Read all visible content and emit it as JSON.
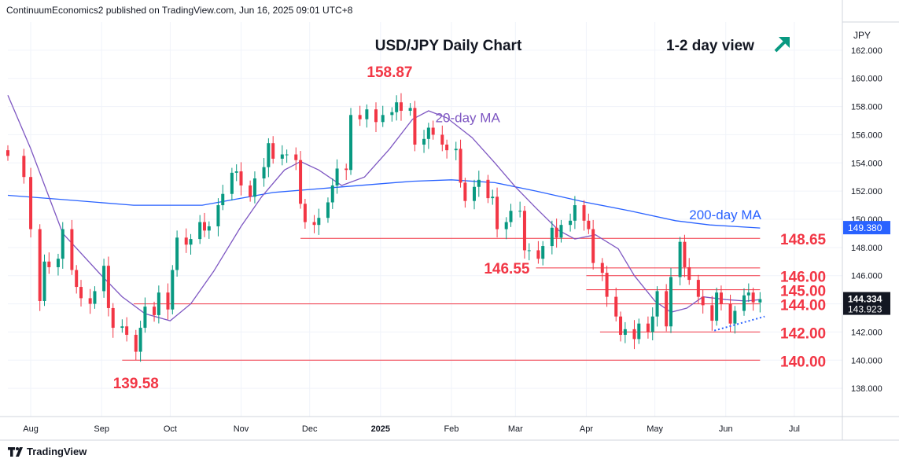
{
  "header": {
    "published_by": "ContinuumEconomics2 published on TradingView.com, Jun 16, 2025 09:01 UTC+8"
  },
  "footer": {
    "brand": "TradingView",
    "brand_icon": "tradingview-logo-icon"
  },
  "colors": {
    "up": "#089981",
    "down": "#f23645",
    "ma20": "#7e57c2",
    "ma200": "#2962ff",
    "level_line": "#f23645",
    "annotation": "#f23645",
    "arrow": "#089981",
    "price_tag": "#131722",
    "ma200_tag": "#2962ff"
  },
  "chart_data": {
    "type": "candlestick",
    "title": "USD/JPY Daily Chart",
    "view": "1-2 day view",
    "view_icon": "arrow-up-right-icon",
    "currency": "JPY",
    "ylim": [
      136,
      164
    ],
    "y_ticks": [
      "162.000",
      "160.000",
      "158.000",
      "156.000",
      "154.000",
      "152.000",
      "150.000",
      "148.000",
      "146.000",
      "144.000",
      "142.000",
      "140.000",
      "138.000"
    ],
    "x_labels": [
      {
        "label": "Aug",
        "date": "2024-08-01"
      },
      {
        "label": "Sep",
        "date": "2024-09-01"
      },
      {
        "label": "Oct",
        "date": "2024-10-01"
      },
      {
        "label": "Nov",
        "date": "2024-11-01"
      },
      {
        "label": "Dec",
        "date": "2024-12-01"
      },
      {
        "label": "2025",
        "date": "2025-01-01"
      },
      {
        "label": "Feb",
        "date": "2025-02-01"
      },
      {
        "label": "Mar",
        "date": "2025-03-01"
      },
      {
        "label": "Apr",
        "date": "2025-04-01"
      },
      {
        "label": "May",
        "date": "2025-05-01"
      },
      {
        "label": "Jun",
        "date": "2025-06-01"
      },
      {
        "label": "Jul",
        "date": "2025-07-01"
      }
    ],
    "x_range": [
      "2024-07-22",
      "2025-07-22"
    ],
    "closes": [
      [
        "2024-07-22",
        154.5
      ],
      [
        "2024-07-29",
        153.0
      ],
      [
        "2024-08-01",
        149.3
      ],
      [
        "2024-08-05",
        144.2
      ],
      [
        "2024-08-07",
        147.0
      ],
      [
        "2024-08-09",
        146.6
      ],
      [
        "2024-08-13",
        147.2
      ],
      [
        "2024-08-15",
        149.3
      ],
      [
        "2024-08-19",
        146.4
      ],
      [
        "2024-08-21",
        145.2
      ],
      [
        "2024-08-23",
        144.4
      ],
      [
        "2024-08-27",
        144.0
      ],
      [
        "2024-08-29",
        144.9
      ],
      [
        "2024-09-02",
        146.7
      ],
      [
        "2024-09-04",
        143.7
      ],
      [
        "2024-09-06",
        142.3
      ],
      [
        "2024-09-10",
        142.4
      ],
      [
        "2024-09-12",
        141.8
      ],
      [
        "2024-09-16",
        140.6
      ],
      [
        "2024-09-18",
        142.3
      ],
      [
        "2024-09-20",
        143.8
      ],
      [
        "2024-09-24",
        143.2
      ],
      [
        "2024-09-26",
        144.8
      ],
      [
        "2024-09-30",
        143.6
      ],
      [
        "2024-10-02",
        146.4
      ],
      [
        "2024-10-04",
        148.7
      ],
      [
        "2024-10-08",
        148.2
      ],
      [
        "2024-10-10",
        148.6
      ],
      [
        "2024-10-14",
        149.8
      ],
      [
        "2024-10-16",
        149.2
      ],
      [
        "2024-10-18",
        149.5
      ],
      [
        "2024-10-22",
        151.0
      ],
      [
        "2024-10-24",
        151.8
      ],
      [
        "2024-10-28",
        153.3
      ],
      [
        "2024-10-30",
        153.4
      ],
      [
        "2024-11-01",
        152.4
      ],
      [
        "2024-11-05",
        151.6
      ],
      [
        "2024-11-07",
        152.9
      ],
      [
        "2024-11-11",
        153.7
      ],
      [
        "2024-11-13",
        155.4
      ],
      [
        "2024-11-15",
        154.3
      ],
      [
        "2024-11-19",
        154.6
      ],
      [
        "2024-11-21",
        154.6
      ],
      [
        "2024-11-25",
        154.2
      ],
      [
        "2024-11-27",
        151.1
      ],
      [
        "2024-11-29",
        149.8
      ],
      [
        "2024-12-03",
        149.6
      ],
      [
        "2024-12-05",
        150.1
      ],
      [
        "2024-12-09",
        151.2
      ],
      [
        "2024-12-11",
        152.4
      ],
      [
        "2024-12-13",
        153.6
      ],
      [
        "2024-12-17",
        153.5
      ],
      [
        "2024-12-19",
        157.4
      ],
      [
        "2024-12-23",
        157.1
      ],
      [
        "2024-12-26",
        157.8
      ],
      [
        "2024-12-30",
        156.9
      ],
      [
        "2025-01-02",
        157.4
      ],
      [
        "2025-01-06",
        157.6
      ],
      [
        "2025-01-08",
        158.3
      ],
      [
        "2025-01-10",
        157.7
      ],
      [
        "2025-01-14",
        157.9
      ],
      [
        "2025-01-16",
        155.3
      ],
      [
        "2025-01-20",
        155.7
      ],
      [
        "2025-01-22",
        156.5
      ],
      [
        "2025-01-24",
        156.0
      ],
      [
        "2025-01-28",
        155.3
      ],
      [
        "2025-01-30",
        154.9
      ],
      [
        "2025-02-03",
        155.0
      ],
      [
        "2025-02-05",
        152.6
      ],
      [
        "2025-02-07",
        151.3
      ],
      [
        "2025-02-11",
        152.3
      ],
      [
        "2025-02-13",
        152.8
      ],
      [
        "2025-02-17",
        151.5
      ],
      [
        "2025-02-19",
        151.6
      ],
      [
        "2025-02-21",
        149.3
      ],
      [
        "2025-02-25",
        149.8
      ],
      [
        "2025-02-27",
        150.6
      ],
      [
        "2025-03-03",
        150.6
      ],
      [
        "2025-03-05",
        147.8
      ],
      [
        "2025-03-07",
        147.8
      ],
      [
        "2025-03-11",
        147.2
      ],
      [
        "2025-03-13",
        148.1
      ],
      [
        "2025-03-17",
        149.4
      ],
      [
        "2025-03-19",
        148.7
      ],
      [
        "2025-03-21",
        149.6
      ],
      [
        "2025-03-25",
        149.9
      ],
      [
        "2025-03-27",
        151.0
      ],
      [
        "2025-03-31",
        149.9
      ],
      [
        "2025-04-02",
        149.3
      ],
      [
        "2025-04-04",
        146.9
      ],
      [
        "2025-04-08",
        146.2
      ],
      [
        "2025-04-10",
        144.5
      ],
      [
        "2025-04-14",
        143.1
      ],
      [
        "2025-04-16",
        141.8
      ],
      [
        "2025-04-18",
        142.2
      ],
      [
        "2025-04-22",
        141.5
      ],
      [
        "2025-04-24",
        142.6
      ],
      [
        "2025-04-28",
        142.0
      ],
      [
        "2025-04-30",
        143.1
      ],
      [
        "2025-05-02",
        144.9
      ],
      [
        "2025-05-06",
        142.4
      ],
      [
        "2025-05-08",
        145.9
      ],
      [
        "2025-05-12",
        148.4
      ],
      [
        "2025-05-14",
        146.6
      ],
      [
        "2025-05-16",
        145.7
      ],
      [
        "2025-05-20",
        144.5
      ],
      [
        "2025-05-22",
        143.9
      ],
      [
        "2025-05-26",
        142.8
      ],
      [
        "2025-05-28",
        144.8
      ],
      [
        "2025-05-30",
        144.0
      ],
      [
        "2025-06-03",
        142.6
      ],
      [
        "2025-06-05",
        143.5
      ],
      [
        "2025-06-09",
        144.6
      ],
      [
        "2025-06-11",
        144.8
      ],
      [
        "2025-06-13",
        144.1
      ],
      [
        "2025-06-16",
        144.33
      ]
    ],
    "ma20": [
      [
        "2024-07-22",
        158.8
      ],
      [
        "2024-08-01",
        155.0
      ],
      [
        "2024-08-15",
        149.0
      ],
      [
        "2024-09-01",
        146.0
      ],
      [
        "2024-09-10",
        144.5
      ],
      [
        "2024-09-20",
        143.3
      ],
      [
        "2024-10-01",
        142.8
      ],
      [
        "2024-10-10",
        144.0
      ],
      [
        "2024-10-20",
        146.3
      ],
      [
        "2024-11-01",
        149.5
      ],
      [
        "2024-11-10",
        151.6
      ],
      [
        "2024-11-20",
        153.5
      ],
      [
        "2024-11-27",
        154.1
      ],
      [
        "2024-12-05",
        153.5
      ],
      [
        "2024-12-15",
        152.4
      ],
      [
        "2024-12-25",
        153.0
      ],
      [
        "2025-01-05",
        155.0
      ],
      [
        "2025-01-15",
        157.1
      ],
      [
        "2025-01-22",
        157.7
      ],
      [
        "2025-01-30",
        157.2
      ],
      [
        "2025-02-10",
        155.8
      ],
      [
        "2025-02-20",
        154.0
      ],
      [
        "2025-03-01",
        152.3
      ],
      [
        "2025-03-10",
        150.8
      ],
      [
        "2025-03-20",
        149.2
      ],
      [
        "2025-03-27",
        148.6
      ],
      [
        "2025-04-05",
        148.9
      ],
      [
        "2025-04-15",
        147.9
      ],
      [
        "2025-04-22",
        146.0
      ],
      [
        "2025-05-01",
        144.2
      ],
      [
        "2025-05-08",
        143.4
      ],
      [
        "2025-05-15",
        143.7
      ],
      [
        "2025-05-22",
        144.5
      ],
      [
        "2025-06-01",
        144.3
      ],
      [
        "2025-06-10",
        144.2
      ],
      [
        "2025-06-16",
        144.3
      ]
    ],
    "ma200": [
      [
        "2024-07-22",
        151.7
      ],
      [
        "2024-08-15",
        151.4
      ],
      [
        "2024-09-15",
        151.0
      ],
      [
        "2024-10-15",
        151.0
      ],
      [
        "2024-11-15",
        151.9
      ],
      [
        "2024-12-15",
        152.3
      ],
      [
        "2025-01-15",
        152.7
      ],
      [
        "2025-02-01",
        152.8
      ],
      [
        "2025-02-20",
        152.6
      ],
      [
        "2025-03-10",
        152.0
      ],
      [
        "2025-04-01",
        151.2
      ],
      [
        "2025-04-20",
        150.6
      ],
      [
        "2025-05-10",
        149.9
      ],
      [
        "2025-05-25",
        149.6
      ],
      [
        "2025-06-16",
        149.38
      ]
    ],
    "levels": [
      {
        "label": "158.87",
        "value": 158.87,
        "line": false,
        "label_date": "2025-01-05",
        "label_pos": "above"
      },
      {
        "label": "148.65",
        "value": 148.65,
        "line": true,
        "from": "2024-11-27",
        "to": "2025-06-16",
        "label_side": "right"
      },
      {
        "label": "146.55",
        "value": 146.55,
        "line": true,
        "from": "2025-03-10",
        "to": "2025-06-16",
        "label_side": "left"
      },
      {
        "label": "146.00",
        "value": 146.0,
        "line": true,
        "from": "2025-04-01",
        "to": "2025-06-16",
        "label_side": "right"
      },
      {
        "label": "145.00",
        "value": 145.0,
        "line": true,
        "from": "2025-04-01",
        "to": "2025-06-16",
        "label_side": "right"
      },
      {
        "label": "144.00",
        "value": 144.0,
        "line": true,
        "from": "2024-09-15",
        "to": "2025-06-16",
        "label_side": "right"
      },
      {
        "label": "142.00",
        "value": 142.0,
        "line": true,
        "from": "2025-04-07",
        "to": "2025-06-16",
        "label_side": "right"
      },
      {
        "label": "140.00",
        "value": 140.0,
        "line": true,
        "from": "2024-09-10",
        "to": "2025-06-16",
        "label_side": "right"
      },
      {
        "label": "139.58",
        "value": 139.58,
        "line": false,
        "label_date": "2024-09-16",
        "label_pos": "below"
      }
    ],
    "trendline": {
      "from": [
        "2025-05-27",
        142.1
      ],
      "to": [
        "2025-06-18",
        143.1
      ],
      "style": "dotted"
    },
    "annotations": [
      {
        "text": "20-day MA",
        "color": "#7e57c2",
        "at": [
          "2025-01-25",
          156.9
        ]
      },
      {
        "text": "200-day MA",
        "color": "#2962ff",
        "at": [
          "2025-05-16",
          150.0
        ]
      }
    ],
    "last_price": "144.334",
    "hidden_tag": "143.923",
    "ma200_value": "149.380",
    "grid": true,
    "legend": "none"
  }
}
